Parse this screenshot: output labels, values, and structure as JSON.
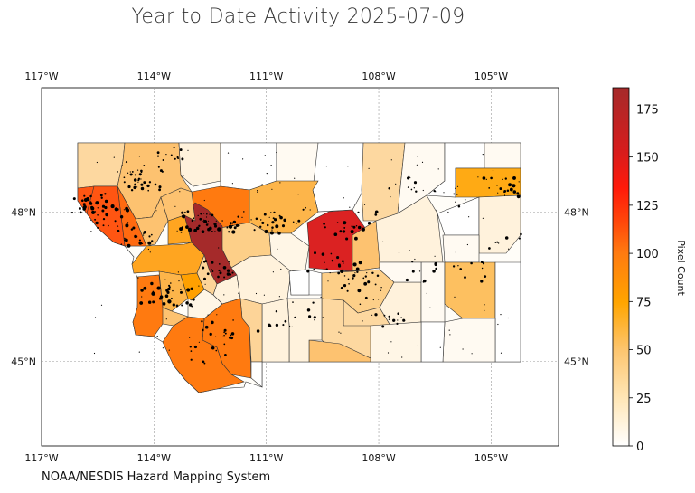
{
  "title": "Year to Date Activity 2025-07-09",
  "credit": "NOAA/NESDIS Hazard Mapping System",
  "map": {
    "lon_range": [
      -117,
      -103.2
    ],
    "lat_range": [
      43.3,
      50.5
    ],
    "lon_ticks": [
      {
        "value": -117,
        "label": "117°W"
      },
      {
        "value": -114,
        "label": "114°W"
      },
      {
        "value": -111,
        "label": "111°W"
      },
      {
        "value": -108,
        "label": "108°W"
      },
      {
        "value": -105,
        "label": "105°W"
      }
    ],
    "lat_ticks": [
      {
        "value": 48,
        "label": "48°N"
      },
      {
        "value": 45,
        "label": "45°N"
      }
    ],
    "grid": true
  },
  "colorbar": {
    "label": "Pixel Count",
    "min": 0,
    "max": 186,
    "ticks": [
      {
        "value": 0,
        "label": "0"
      },
      {
        "value": 25,
        "label": "25"
      },
      {
        "value": 50,
        "label": "50"
      },
      {
        "value": 75,
        "label": "75"
      },
      {
        "value": 100,
        "label": "100"
      },
      {
        "value": 125,
        "label": "125"
      },
      {
        "value": 150,
        "label": "150"
      },
      {
        "value": 175,
        "label": "175"
      }
    ],
    "colors": [
      "#ffffff",
      "#ffe7b8",
      "#fdc56e",
      "#ffa500",
      "#ff7a10",
      "#ff4a0a",
      "#ff1a0a",
      "#d81c1c",
      "#a52a2a"
    ]
  }
}
